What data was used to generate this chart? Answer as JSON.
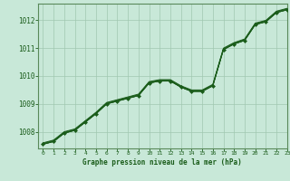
{
  "title": "Graphe pression niveau de la mer (hPa)",
  "background_color": "#c8e8d8",
  "grid_color": "#a0c8b0",
  "line_color": "#1a5c1a",
  "spine_color": "#5a8a5a",
  "xlim": [
    -0.5,
    23
  ],
  "ylim": [
    1007.4,
    1012.6
  ],
  "yticks": [
    1008,
    1009,
    1010,
    1011,
    1012
  ],
  "xticks": [
    0,
    1,
    2,
    3,
    4,
    5,
    6,
    7,
    8,
    9,
    10,
    11,
    12,
    13,
    14,
    15,
    16,
    17,
    18,
    19,
    20,
    21,
    22,
    23
  ],
  "series1": [
    1007.55,
    1007.65,
    1007.95,
    1008.05,
    1008.35,
    1008.65,
    1009.0,
    1009.1,
    1009.2,
    1009.3,
    1009.75,
    1009.82,
    1009.82,
    1009.6,
    1009.45,
    1009.45,
    1009.65,
    1010.95,
    1011.15,
    1011.28,
    1011.85,
    1011.95,
    1012.28,
    1012.38
  ],
  "series2": [
    1007.55,
    1007.65,
    1007.95,
    1008.05,
    1008.35,
    1008.65,
    1009.0,
    1009.1,
    1009.2,
    1009.3,
    1009.75,
    1009.82,
    1009.82,
    1009.6,
    1009.45,
    1009.45,
    1009.65,
    1010.95,
    1011.15,
    1011.28,
    1011.85,
    1011.95,
    1012.28,
    1012.38
  ],
  "series3": [
    1007.58,
    1007.68,
    1007.98,
    1008.08,
    1008.38,
    1008.68,
    1009.03,
    1009.13,
    1009.23,
    1009.33,
    1009.78,
    1009.85,
    1009.85,
    1009.63,
    1009.48,
    1009.48,
    1009.68,
    1010.98,
    1011.18,
    1011.31,
    1011.88,
    1011.98,
    1012.31,
    1012.41
  ],
  "series4": [
    1007.6,
    1007.7,
    1008.0,
    1008.1,
    1008.4,
    1008.7,
    1009.05,
    1009.15,
    1009.25,
    1009.35,
    1009.8,
    1009.87,
    1009.87,
    1009.65,
    1009.5,
    1009.5,
    1009.7,
    1011.0,
    1011.2,
    1011.33,
    1011.9,
    1012.0,
    1012.33,
    1012.43
  ],
  "markers": [
    1007.55,
    1007.65,
    1007.95,
    1008.05,
    1008.35,
    1008.65,
    1009.0,
    1009.1,
    1009.2,
    1009.3,
    1009.75,
    1009.82,
    1009.82,
    1009.6,
    1009.45,
    1009.45,
    1009.65,
    1010.95,
    1011.15,
    1011.28,
    1011.85,
    1011.95,
    1012.28,
    1012.38
  ]
}
